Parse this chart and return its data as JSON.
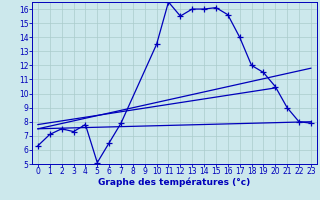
{
  "bg_color": "#cce8ec",
  "grid_color": "#aacccc",
  "line_color": "#0000bb",
  "xlabel": "Graphe des températures (°c)",
  "xlim": [
    -0.5,
    23.5
  ],
  "ylim": [
    5,
    16.5
  ],
  "yticks": [
    5,
    6,
    7,
    8,
    9,
    10,
    11,
    12,
    13,
    14,
    15,
    16
  ],
  "xticks": [
    0,
    1,
    2,
    3,
    4,
    5,
    6,
    7,
    8,
    9,
    10,
    11,
    12,
    13,
    14,
    15,
    16,
    17,
    18,
    19,
    20,
    21,
    22,
    23
  ],
  "curve1_x": [
    0,
    1,
    2,
    3,
    4,
    5,
    6,
    7,
    10,
    11,
    12,
    13,
    14,
    15,
    16,
    17,
    18,
    19,
    20,
    21,
    22,
    23
  ],
  "curve1_y": [
    6.3,
    7.1,
    7.5,
    7.3,
    7.8,
    5.1,
    6.5,
    7.9,
    13.5,
    16.5,
    15.5,
    16.0,
    16.0,
    16.1,
    15.6,
    14.0,
    12.0,
    11.5,
    10.5,
    9.0,
    8.0,
    7.9
  ],
  "line2_x": [
    0,
    23
  ],
  "line2_y": [
    7.5,
    8.0
  ],
  "line3_x": [
    0,
    23
  ],
  "line3_y": [
    7.5,
    11.8
  ],
  "line4_x": [
    0,
    20
  ],
  "line4_y": [
    7.8,
    10.4
  ]
}
